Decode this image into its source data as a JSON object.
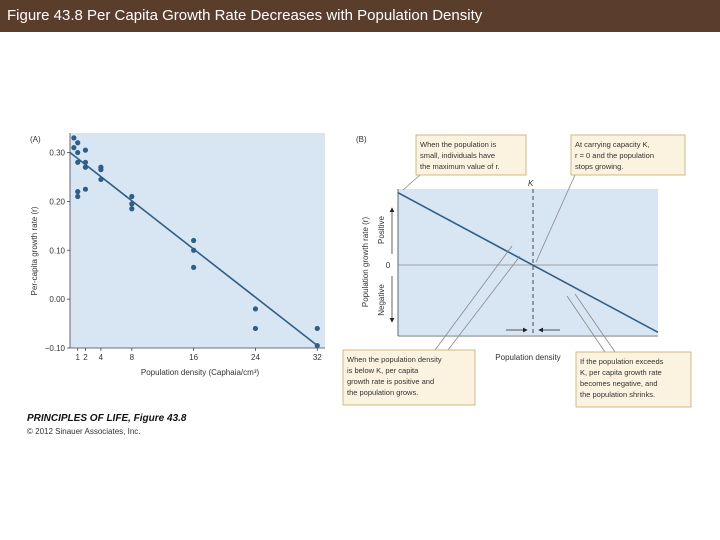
{
  "header": {
    "title": "Figure 43.8 Per Capita Growth Rate Decreases with Population Density",
    "background": "#5a3d2b"
  },
  "panel_a": {
    "label": "(A)"
  },
  "panel_b": {
    "label": "(B)",
    "k_label": "K",
    "zero_label": "0",
    "positive_label": "Positive",
    "negative_label": "Negative",
    "ylabel": "Population growth rate (r)",
    "xlabel": "Population density",
    "callouts": {
      "top_left": [
        "When the population is",
        "small, individuals have",
        "the maximum value of r."
      ],
      "top_right": [
        "At carrying capacity K,",
        "r = 0 and the population",
        "stops growing."
      ],
      "bottom_left": [
        "When the population density",
        "is below K, per capita",
        "growth rate is positive and",
        "the population grows."
      ],
      "bottom_right": [
        "If the population exceeds",
        "K, per capita growth rate",
        "becomes negative, and",
        "the population shrinks."
      ]
    }
  },
  "credit": {
    "title": "PRINCIPLES OF LIFE, Figure 43.8",
    "subtitle": "© 2012 Sinauer Associates, Inc."
  },
  "colors": {
    "plot_bg": "#d8e6f3",
    "points": "#2f5f86",
    "line": "#2f5f86",
    "callout_bg": "#fbf3df",
    "callout_border": "#c8a96a"
  },
  "chart_data": [
    {
      "type": "scatter",
      "panel": "A",
      "title": "",
      "xlabel": "Population density (Caphaia/cm³)",
      "ylabel": "Per-capita growth rate (r)",
      "xlim": [
        0,
        33
      ],
      "ylim": [
        -0.1,
        0.34
      ],
      "x_ticks": [
        1,
        2,
        4,
        8,
        16,
        24,
        32
      ],
      "y_ticks": [
        {
          "value": 0.3,
          "label": "0.30"
        },
        {
          "value": 0.2,
          "label": "0.20"
        },
        {
          "value": 0.1,
          "label": "0.10"
        },
        {
          "value": 0.0,
          "label": "0.00"
        },
        {
          "value": -0.1,
          "label": "−0.10"
        }
      ],
      "points": [
        [
          0.5,
          0.33
        ],
        [
          0.5,
          0.31
        ],
        [
          1,
          0.32
        ],
        [
          1,
          0.3
        ],
        [
          1,
          0.28
        ],
        [
          1,
          0.22
        ],
        [
          1,
          0.21
        ],
        [
          2,
          0.28
        ],
        [
          2,
          0.27
        ],
        [
          2,
          0.225
        ],
        [
          2,
          0.305
        ],
        [
          2,
          0.27
        ],
        [
          4,
          0.27
        ],
        [
          4,
          0.265
        ],
        [
          4,
          0.245
        ],
        [
          8,
          0.21
        ],
        [
          8,
          0.195
        ],
        [
          8,
          0.185
        ],
        [
          16,
          0.12
        ],
        [
          16,
          0.1
        ],
        [
          16,
          0.065
        ],
        [
          24,
          -0.02
        ],
        [
          24,
          -0.06
        ],
        [
          32,
          -0.06
        ],
        [
          32,
          -0.095
        ]
      ],
      "fit_line": {
        "x": [
          0,
          32
        ],
        "y": [
          0.3,
          -0.095
        ]
      }
    },
    {
      "type": "line",
      "panel": "B",
      "title": "",
      "xlabel": "Population density",
      "ylabel": "Population growth rate (r)",
      "xlim": [
        0,
        1
      ],
      "ylim": [
        -1,
        1
      ],
      "x": [
        0,
        1
      ],
      "y": [
        0.95,
        -0.95
      ],
      "carrying_capacity_x": 0.5,
      "zero_line": 0
    }
  ]
}
